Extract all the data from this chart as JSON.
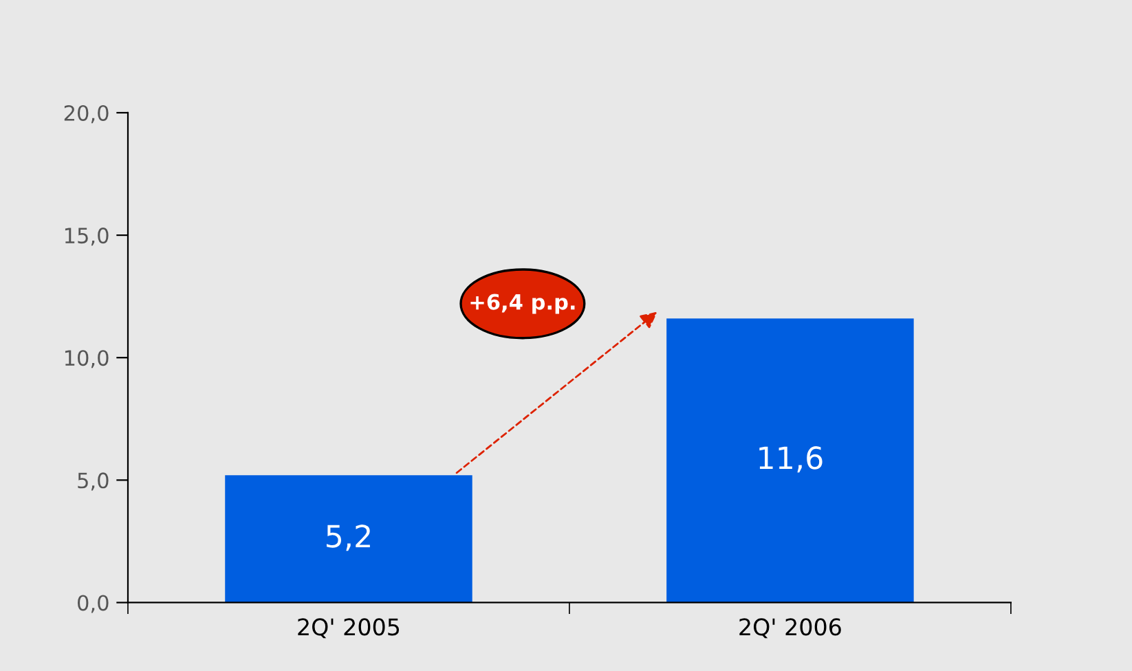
{
  "chart_data": {
    "type": "bar",
    "categories": [
      "2Q' 2005",
      "2Q' 2006"
    ],
    "values": [
      5.2,
      11.6
    ],
    "color": "#005ee0",
    "value_labels": [
      "5,2",
      "11,6"
    ],
    "ylim": [
      0,
      20
    ],
    "yticks": [
      {
        "value": 0,
        "label": "0,0"
      },
      {
        "value": 5,
        "label": "5,0"
      },
      {
        "value": 10,
        "label": "10,0"
      },
      {
        "value": 15,
        "label": "15,0"
      },
      {
        "value": 20,
        "label": "20,0"
      }
    ],
    "annotations": [
      "+6,4 p.p."
    ],
    "grid": false,
    "legend": false
  }
}
